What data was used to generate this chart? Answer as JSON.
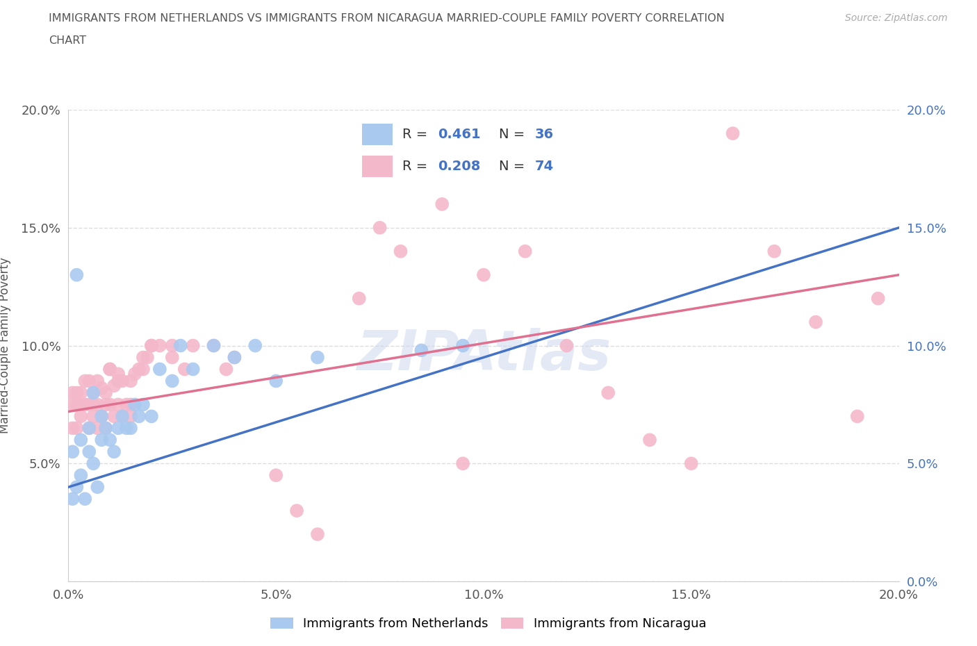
{
  "title_line1": "IMMIGRANTS FROM NETHERLANDS VS IMMIGRANTS FROM NICARAGUA MARRIED-COUPLE FAMILY POVERTY CORRELATION",
  "title_line2": "CHART",
  "source": "Source: ZipAtlas.com",
  "ylabel": "Married-Couple Family Poverty",
  "xlim": [
    0.0,
    0.2
  ],
  "ylim": [
    0.0,
    0.2
  ],
  "xticks": [
    0.0,
    0.05,
    0.1,
    0.15,
    0.2
  ],
  "yticks": [
    0.0,
    0.05,
    0.1,
    0.15,
    0.2
  ],
  "netherlands_color": "#aac9ef",
  "nicaragua_color": "#f4b8cb",
  "netherlands_line_color": "#4472c4",
  "nicaragua_line_color": "#e07090",
  "netherlands_R": 0.461,
  "netherlands_N": 36,
  "nicaragua_R": 0.208,
  "nicaragua_N": 74,
  "nl_line_x0": 0.0,
  "nl_line_y0": 0.04,
  "nl_line_x1": 0.2,
  "nl_line_y1": 0.15,
  "nic_line_x0": 0.0,
  "nic_line_y0": 0.072,
  "nic_line_x1": 0.2,
  "nic_line_y1": 0.13,
  "nl_x": [
    0.001,
    0.002,
    0.003,
    0.004,
    0.005,
    0.005,
    0.006,
    0.007,
    0.008,
    0.009,
    0.01,
    0.011,
    0.012,
    0.013,
    0.014,
    0.015,
    0.016,
    0.017,
    0.018,
    0.02,
    0.022,
    0.025,
    0.027,
    0.03,
    0.035,
    0.04,
    0.045,
    0.05,
    0.06,
    0.085,
    0.095,
    0.002,
    0.003,
    0.006,
    0.008,
    0.001
  ],
  "nl_y": [
    0.055,
    0.04,
    0.06,
    0.035,
    0.055,
    0.065,
    0.05,
    0.04,
    0.07,
    0.065,
    0.06,
    0.055,
    0.065,
    0.07,
    0.065,
    0.065,
    0.075,
    0.07,
    0.075,
    0.07,
    0.09,
    0.085,
    0.1,
    0.09,
    0.1,
    0.095,
    0.1,
    0.085,
    0.095,
    0.098,
    0.1,
    0.13,
    0.045,
    0.08,
    0.06,
    0.035
  ],
  "nic_x": [
    0.001,
    0.001,
    0.002,
    0.002,
    0.003,
    0.003,
    0.004,
    0.004,
    0.005,
    0.005,
    0.005,
    0.006,
    0.006,
    0.007,
    0.007,
    0.008,
    0.008,
    0.009,
    0.009,
    0.01,
    0.01,
    0.011,
    0.011,
    0.012,
    0.012,
    0.013,
    0.013,
    0.014,
    0.015,
    0.015,
    0.016,
    0.017,
    0.018,
    0.019,
    0.02,
    0.022,
    0.025,
    0.028,
    0.03,
    0.035,
    0.038,
    0.04,
    0.05,
    0.055,
    0.06,
    0.07,
    0.075,
    0.08,
    0.09,
    0.095,
    0.1,
    0.11,
    0.12,
    0.13,
    0.14,
    0.15,
    0.16,
    0.17,
    0.18,
    0.19,
    0.195,
    0.001,
    0.002,
    0.003,
    0.004,
    0.006,
    0.007,
    0.009,
    0.01,
    0.012,
    0.015,
    0.018,
    0.02,
    0.025
  ],
  "nic_y": [
    0.065,
    0.08,
    0.065,
    0.08,
    0.07,
    0.08,
    0.075,
    0.085,
    0.065,
    0.075,
    0.085,
    0.07,
    0.08,
    0.065,
    0.085,
    0.07,
    0.082,
    0.065,
    0.08,
    0.075,
    0.09,
    0.07,
    0.083,
    0.075,
    0.088,
    0.07,
    0.085,
    0.075,
    0.07,
    0.085,
    0.088,
    0.09,
    0.09,
    0.095,
    0.1,
    0.1,
    0.1,
    0.09,
    0.1,
    0.1,
    0.09,
    0.095,
    0.045,
    0.03,
    0.02,
    0.12,
    0.15,
    0.14,
    0.16,
    0.05,
    0.13,
    0.14,
    0.1,
    0.08,
    0.06,
    0.05,
    0.19,
    0.14,
    0.11,
    0.07,
    0.12,
    0.075,
    0.075,
    0.075,
    0.075,
    0.075,
    0.075,
    0.075,
    0.09,
    0.085,
    0.075,
    0.095,
    0.1,
    0.095
  ],
  "background_color": "#ffffff",
  "grid_color": "#dddddd",
  "watermark": "ZIPAtlas"
}
